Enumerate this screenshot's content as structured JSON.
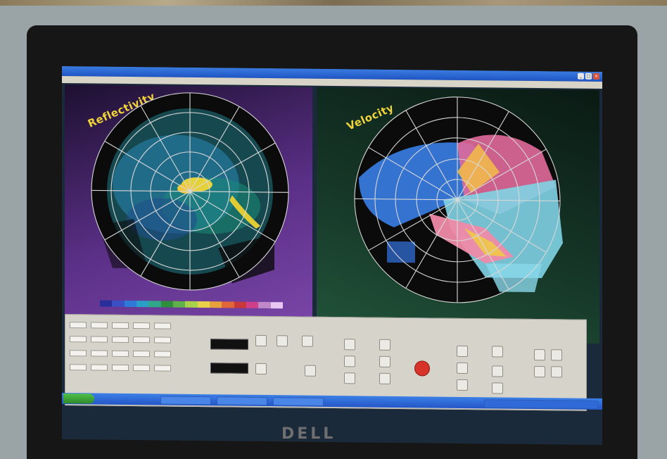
{
  "scene": {
    "device": "laptop",
    "bezel_logo": "DELL",
    "screen": {
      "panels": [
        {
          "title": "Reflectivity",
          "color_scale": [
            "#2a2e9a",
            "#3c4fc4",
            "#2f7ad6",
            "#2aa0c8",
            "#2fa98a",
            "#2f8f3a",
            "#5fb24a",
            "#a8d04a",
            "#e9d24a",
            "#e8a23a",
            "#e0663a",
            "#c8383a",
            "#d0408a",
            "#c088c8",
            "#e8c8f0"
          ]
        },
        {
          "title": "Velocity",
          "color_scale": [
            "#1e4a1e",
            "#2c6a2c",
            "#3c8a3c",
            "#3a6ad8",
            "#4a8ae8",
            "#5ab0f0",
            "#6ad0f0",
            "#8ae0f0",
            "#f0d24a",
            "#f0a84a",
            "#f06a6a",
            "#e84a7a",
            "#c83a5a",
            "#9a2a3a",
            "#7a1a2a"
          ]
        }
      ],
      "icons": [
        "stop-icon"
      ]
    }
  }
}
